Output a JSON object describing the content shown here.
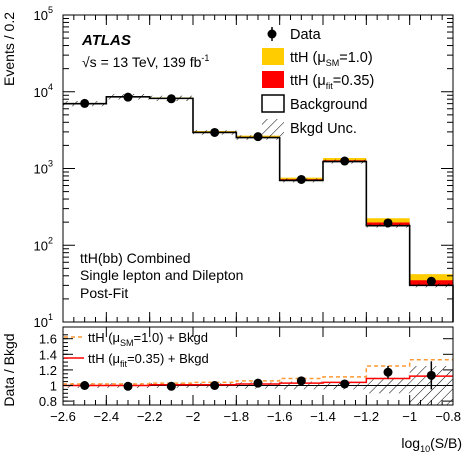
{
  "y_axis_title_top": "Events / 0.2",
  "y_axis_title_bottom": "Data / Bkgd",
  "x_axis_title": "log",
  "x_axis_title_sub": "10",
  "x_axis_title_tail": "(S/B)",
  "atlas_label": "ATLAS",
  "energy_label": "√s = 13 TeV, 139 fb",
  "energy_sup": "-1",
  "channel_lines": [
    "ttH(bb) Combined",
    "Single lepton and Dilepton",
    "Post-Fit"
  ],
  "legend_top": [
    {
      "label": "Data",
      "kind": "marker"
    },
    {
      "label": "ttH (μ",
      "sub": "SM",
      "tail": "=1.0)",
      "kind": "fill",
      "color": "#ffcc00"
    },
    {
      "label": "ttH (μ",
      "sub": "fit",
      "tail": "=0.35)",
      "kind": "fill",
      "color": "#ff0000"
    },
    {
      "label": "Background",
      "kind": "box"
    },
    {
      "label": "Bkgd Unc.",
      "kind": "hatch"
    }
  ],
  "legend_ratio": [
    {
      "label": "ttH (μ",
      "sub": "SM",
      "tail": "=1.0) + Bkgd",
      "color": "#ff9933",
      "dashed": true
    },
    {
      "label": "ttH (μ",
      "sub": "fit",
      "tail": "=0.35) + Bkgd",
      "color": "#ff0000",
      "dashed": false
    }
  ],
  "colors": {
    "signal_sm": "#ffcc00",
    "signal_fit": "#ff0000",
    "ratio_sm_line": "#ff9933",
    "ratio_fit_line": "#ff0000"
  },
  "chart_data": [
    {
      "type": "bar",
      "panel": "main",
      "ylabel": "Events / 0.2",
      "yscale": "log",
      "ylim": [
        10,
        100000
      ],
      "xlim": [
        -2.6,
        -0.8
      ],
      "y_ticks": [
        10,
        100,
        1000,
        10000,
        100000
      ],
      "y_tick_labels": [
        "10",
        "10",
        "10",
        "10",
        "10"
      ],
      "y_tick_exponents": [
        "1",
        "2",
        "3",
        "4",
        "5"
      ],
      "bin_edges": [
        -2.6,
        -2.4,
        -2.2,
        -2.0,
        -1.8,
        -1.6,
        -1.4,
        -1.2,
        -1.0,
        -0.8
      ],
      "background": [
        7000,
        8600,
        8200,
        2950,
        2530,
        700,
        1230,
        180,
        30
      ],
      "signal_fit_plus_background": [
        7050,
        8660,
        8280,
        3000,
        2580,
        725,
        1280,
        198,
        35
      ],
      "signal_sm_plus_background": [
        7150,
        8760,
        8420,
        3080,
        2680,
        760,
        1370,
        225,
        42
      ],
      "data": {
        "x": [
          -2.5,
          -2.3,
          -2.1,
          -1.9,
          -1.7,
          -1.5,
          -1.3,
          -1.1,
          -0.9
        ],
        "y": [
          7050,
          8500,
          8100,
          2950,
          2600,
          720,
          1250,
          195,
          34
        ]
      }
    },
    {
      "type": "line",
      "panel": "ratio",
      "ylabel": "Data / Bkgd",
      "xlabel": "log10(S/B)",
      "ylim": [
        0.75,
        1.75
      ],
      "xlim": [
        -2.6,
        -0.8
      ],
      "y_ticks": [
        0.8,
        1,
        1.2,
        1.4,
        1.6
      ],
      "y_tick_labels": [
        "0.8",
        "1",
        "1.2",
        "1.4",
        "1.6"
      ],
      "x_ticks": [
        -2.6,
        -2.4,
        -2.2,
        -2.0,
        -1.8,
        -1.6,
        -1.4,
        -1.2,
        -1.0,
        -0.8
      ],
      "x_tick_labels": [
        "−2.6",
        "−2.4",
        "−2.2",
        "−2",
        "−1.8",
        "−1.6",
        "−1.4",
        "−1.2",
        "−1",
        "−0.8"
      ],
      "bin_edges": [
        -2.6,
        -2.4,
        -2.2,
        -2.0,
        -1.8,
        -1.6,
        -1.4,
        -1.2,
        -1.0,
        -0.8
      ],
      "ratio_sm": [
        1.02,
        1.02,
        1.03,
        1.04,
        1.06,
        1.09,
        1.11,
        1.25,
        1.33
      ],
      "ratio_fit": [
        1.0,
        1.0,
        1.01,
        1.01,
        1.02,
        1.03,
        1.04,
        1.09,
        1.12
      ],
      "bkg_unc": [
        0.03,
        0.03,
        0.03,
        0.03,
        0.04,
        0.05,
        0.05,
        0.1,
        0.25
      ],
      "data": {
        "x": [
          -2.5,
          -2.3,
          -2.1,
          -1.9,
          -1.7,
          -1.5,
          -1.3,
          -1.1,
          -0.9
        ],
        "y": [
          1.0,
          0.99,
          0.99,
          1.0,
          1.03,
          1.06,
          1.02,
          1.17,
          1.13
        ],
        "err": [
          0.02,
          0.02,
          0.02,
          0.03,
          0.03,
          0.05,
          0.04,
          0.08,
          0.18
        ]
      }
    }
  ]
}
